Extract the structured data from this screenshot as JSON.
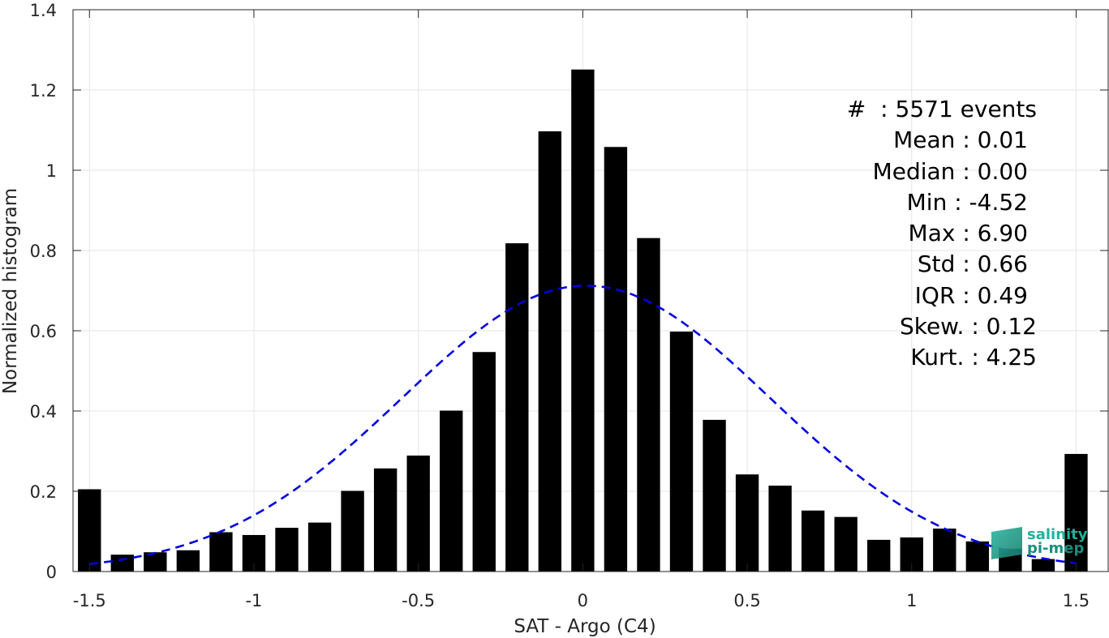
{
  "chart_data": {
    "type": "bar",
    "xlabel": "SAT - Argo (C4)",
    "ylabel": "Normalized histogram",
    "xlim": [
      -1.55,
      1.6
    ],
    "ylim": [
      0,
      1.4
    ],
    "xticks": [
      -1.5,
      -1,
      -0.5,
      0,
      0.5,
      1,
      1.5
    ],
    "xtick_labels": [
      "-1.5",
      "-1",
      "-0.5",
      "0",
      "0.5",
      "1",
      "1.5"
    ],
    "yticks": [
      0,
      0.2,
      0.4,
      0.6,
      0.8,
      1,
      1.2,
      1.4
    ],
    "ytick_labels": [
      "0",
      "0.2",
      "0.4",
      "0.6",
      "0.8",
      "1",
      "1.2",
      "1.4"
    ],
    "grid": true,
    "bar_color": "#000000",
    "x": [
      -1.5,
      -1.4,
      -1.3,
      -1.2,
      -1.1,
      -1.0,
      -0.9,
      -0.8,
      -0.7,
      -0.6,
      -0.5,
      -0.4,
      -0.3,
      -0.2,
      -0.1,
      0.0,
      0.1,
      0.2,
      0.3,
      0.4,
      0.5,
      0.6,
      0.7,
      0.8,
      0.9,
      1.0,
      1.1,
      1.2,
      1.3,
      1.4,
      1.5
    ],
    "values": [
      0.205,
      0.042,
      0.048,
      0.053,
      0.098,
      0.091,
      0.109,
      0.122,
      0.201,
      0.257,
      0.289,
      0.401,
      0.547,
      0.818,
      1.097,
      1.251,
      1.058,
      0.831,
      0.598,
      0.378,
      0.242,
      0.214,
      0.152,
      0.136,
      0.079,
      0.085,
      0.107,
      0.075,
      0.057,
      0.031,
      0.293
    ],
    "fit_curve": {
      "type": "gaussian",
      "mean": 0.01,
      "std": 0.56,
      "color": "#0000e0",
      "style": "dashed"
    },
    "stats_annotation": [
      "#  : 5571 events",
      "Mean : 0.01",
      "Median : 0.00",
      "Min : -4.52",
      "Max : 6.90",
      "Std : 0.66",
      "IQR : 0.49",
      "Skew. : 0.12",
      "Kurt. : 4.25"
    ]
  },
  "logo": {
    "line1": "salinity",
    "line2": "pi-mep",
    "color": "#1fb39a"
  }
}
